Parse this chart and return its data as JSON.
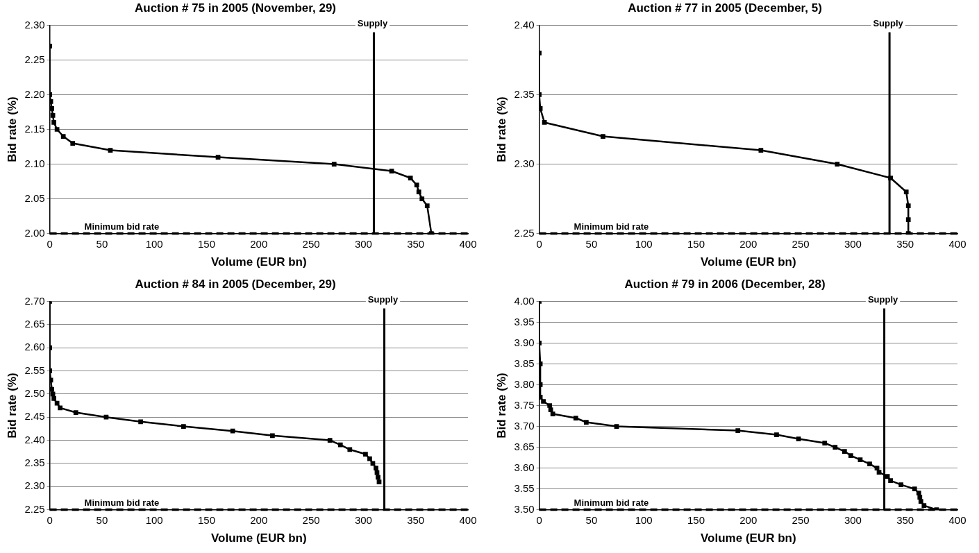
{
  "chart_data": [
    {
      "type": "line",
      "title": "Auction # 75 in 2005 (November, 29)",
      "xlabel": "Volume (EUR bn)",
      "ylabel": "Bid rate (%)",
      "xlim": [
        0,
        400
      ],
      "xticks": [
        0,
        50,
        100,
        150,
        200,
        250,
        300,
        350,
        400
      ],
      "ylim": [
        2.0,
        2.3
      ],
      "yticks": [
        {
          "value": 2.0,
          "label": "2.00"
        },
        {
          "value": 2.05,
          "label": "2.05"
        },
        {
          "value": 2.1,
          "label": "2.10"
        },
        {
          "value": 2.15,
          "label": "2.15"
        },
        {
          "value": 2.2,
          "label": "2.20"
        },
        {
          "value": 2.25,
          "label": "2.25"
        },
        {
          "value": 2.3,
          "label": "2.30"
        }
      ],
      "grid": "y",
      "legend": false,
      "marker": "square",
      "line_style": "solid",
      "series": [
        {
          "color": "#000000",
          "x": [
            0,
            0,
            1,
            2,
            3,
            4,
            7,
            13,
            22,
            58,
            161,
            272,
            327,
            345,
            351,
            353,
            356,
            361,
            365
          ],
          "values": [
            2.27,
            2.2,
            2.19,
            2.18,
            2.17,
            2.16,
            2.15,
            2.14,
            2.13,
            2.12,
            2.11,
            2.1,
            2.09,
            2.08,
            2.07,
            2.06,
            2.05,
            2.04,
            2.0
          ]
        }
      ],
      "ref_lines": [
        {
          "axis": "x",
          "value": 310,
          "label": "Supply",
          "color": "#000000",
          "line_style": "solid"
        },
        {
          "axis": "y",
          "value": 2.0,
          "label": "Minimum bid rate",
          "color": "#000000",
          "line_style": "dashed"
        }
      ]
    },
    {
      "type": "line",
      "title": "Auction # 77 in 2005 (December, 5)",
      "xlabel": "Volume (EUR bn)",
      "ylabel": "Bid rate (%)",
      "xlim": [
        0,
        400
      ],
      "xticks": [
        0,
        50,
        100,
        150,
        200,
        250,
        300,
        350,
        400
      ],
      "ylim": [
        2.25,
        2.4
      ],
      "yticks": [
        {
          "value": 2.25,
          "label": "2.25"
        },
        {
          "value": 2.3,
          "label": "2.30"
        },
        {
          "value": 2.35,
          "label": "2.35"
        },
        {
          "value": 2.4,
          "label": "2.40"
        }
      ],
      "grid": "y",
      "legend": false,
      "marker": "square",
      "line_style": "solid",
      "series": [
        {
          "color": "#000000",
          "x": [
            0,
            0,
            1,
            5,
            61,
            212,
            285,
            336,
            351,
            353,
            353,
            353
          ],
          "values": [
            2.38,
            2.35,
            2.34,
            2.33,
            2.32,
            2.31,
            2.3,
            2.29,
            2.28,
            2.27,
            2.26,
            2.25
          ]
        }
      ],
      "ref_lines": [
        {
          "axis": "x",
          "value": 335,
          "label": "Supply",
          "color": "#000000",
          "line_style": "solid"
        },
        {
          "axis": "y",
          "value": 2.25,
          "label": "Minimum bid rate",
          "color": "#000000",
          "line_style": "dashed"
        }
      ]
    },
    {
      "type": "line",
      "title": "Auction # 84 in 2005 (December, 29)",
      "xlabel": "Volume (EUR bn)",
      "ylabel": "Bid rate (%)",
      "xlim": [
        0,
        400
      ],
      "xticks": [
        0,
        50,
        100,
        150,
        200,
        250,
        300,
        350,
        400
      ],
      "ylim": [
        2.25,
        2.7
      ],
      "yticks": [
        {
          "value": 2.25,
          "label": "2.25"
        },
        {
          "value": 2.3,
          "label": "2.30"
        },
        {
          "value": 2.35,
          "label": "2.35"
        },
        {
          "value": 2.4,
          "label": "2.40"
        },
        {
          "value": 2.45,
          "label": "2.45"
        },
        {
          "value": 2.5,
          "label": "2.50"
        },
        {
          "value": 2.55,
          "label": "2.55"
        },
        {
          "value": 2.6,
          "label": "2.60"
        },
        {
          "value": 2.65,
          "label": "2.65"
        },
        {
          "value": 2.7,
          "label": "2.70"
        }
      ],
      "grid": "y",
      "legend": false,
      "marker": "square",
      "line_style": "solid",
      "series": [
        {
          "color": "#000000",
          "x": [
            0,
            0,
            0,
            1,
            2,
            3,
            4,
            7,
            10,
            25,
            54,
            87,
            128,
            175,
            213,
            268,
            278,
            287,
            302,
            306,
            309,
            312,
            313,
            314,
            315
          ],
          "values": [
            2.7,
            2.6,
            2.55,
            2.53,
            2.51,
            2.5,
            2.49,
            2.48,
            2.47,
            2.46,
            2.45,
            2.44,
            2.43,
            2.42,
            2.41,
            2.4,
            2.39,
            2.38,
            2.37,
            2.36,
            2.35,
            2.34,
            2.33,
            2.32,
            2.31
          ]
        }
      ],
      "ref_lines": [
        {
          "axis": "x",
          "value": 320,
          "label": "Supply",
          "color": "#000000",
          "line_style": "solid"
        },
        {
          "axis": "y",
          "value": 2.25,
          "label": "Minimum bid rate",
          "color": "#000000",
          "line_style": "dashed"
        }
      ]
    },
    {
      "type": "line",
      "title": "Auction # 79 in 2006 (December, 28)",
      "xlabel": "Volume (EUR bn)",
      "ylabel": "Bid rate (%)",
      "xlim": [
        0,
        400
      ],
      "xticks": [
        0,
        50,
        100,
        150,
        200,
        250,
        300,
        350,
        400
      ],
      "ylim": [
        3.5,
        4.0
      ],
      "yticks": [
        {
          "value": 3.5,
          "label": "3.50"
        },
        {
          "value": 3.55,
          "label": "3.55"
        },
        {
          "value": 3.6,
          "label": "3.60"
        },
        {
          "value": 3.65,
          "label": "3.65"
        },
        {
          "value": 3.7,
          "label": "3.70"
        },
        {
          "value": 3.75,
          "label": "3.75"
        },
        {
          "value": 3.8,
          "label": "3.80"
        },
        {
          "value": 3.85,
          "label": "3.85"
        },
        {
          "value": 3.9,
          "label": "3.90"
        },
        {
          "value": 3.95,
          "label": "3.95"
        },
        {
          "value": 4.0,
          "label": "4.00"
        }
      ],
      "grid": "y",
      "legend": false,
      "marker": "square",
      "line_style": "solid",
      "series": [
        {
          "color": "#000000",
          "x": [
            0,
            0,
            1,
            1,
            1,
            4,
            10,
            11,
            13,
            35,
            45,
            74,
            190,
            227,
            248,
            273,
            283,
            292,
            298,
            307,
            316,
            323,
            325,
            333,
            336,
            346,
            359,
            363,
            364,
            365,
            368,
            380
          ],
          "values": [
            4.0,
            3.9,
            3.85,
            3.8,
            3.77,
            3.76,
            3.75,
            3.74,
            3.73,
            3.72,
            3.71,
            3.7,
            3.69,
            3.68,
            3.67,
            3.66,
            3.65,
            3.64,
            3.63,
            3.62,
            3.61,
            3.6,
            3.59,
            3.58,
            3.57,
            3.56,
            3.55,
            3.54,
            3.53,
            3.52,
            3.51,
            3.5
          ]
        }
      ],
      "ref_lines": [
        {
          "axis": "x",
          "value": 330,
          "label": "Supply",
          "color": "#000000",
          "line_style": "solid"
        },
        {
          "axis": "y",
          "value": 3.5,
          "label": "Minimum bid rate",
          "color": "#000000",
          "line_style": "dashed"
        }
      ]
    }
  ]
}
